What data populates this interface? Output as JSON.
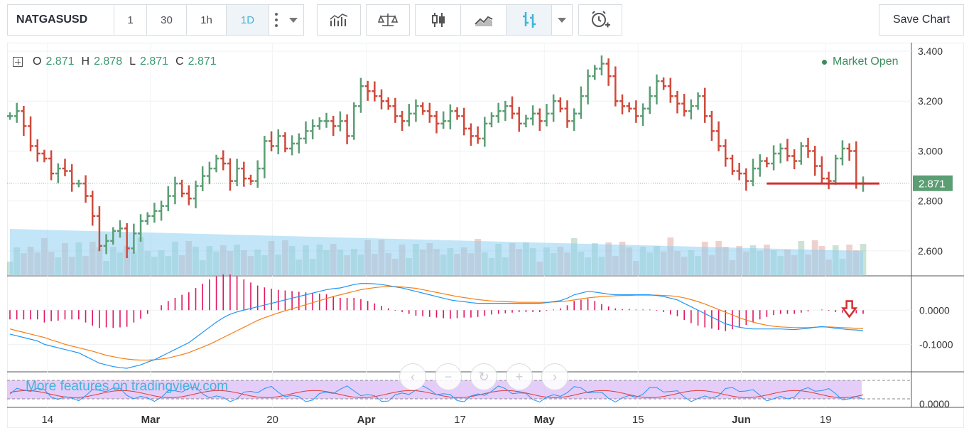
{
  "toolbar": {
    "symbol": "NATGASUSD",
    "intervals": [
      "1",
      "30",
      "1h",
      "1D"
    ],
    "active_interval": "1D",
    "save_label": "Save Chart",
    "icons": [
      "indicators-icon",
      "compare-scale-icon",
      "candles-icon",
      "line-chart-icon",
      "bars-icon",
      "alert-icon"
    ]
  },
  "legend": {
    "o_label": "O",
    "o": "2.871",
    "h_label": "H",
    "h": "2.878",
    "l_label": "L",
    "l": "2.871",
    "c_label": "C",
    "c": "2.871"
  },
  "status": "Market Open",
  "last_price_label": "2.871",
  "promo": "More features on tradingview.com",
  "colors": {
    "up": "#5b9e74",
    "down": "#cf4a3a",
    "macd": "#2196f3",
    "signal": "#f57f17",
    "hist": "#e0155f",
    "support": "#d32f2f",
    "accent": "#41b4d8"
  },
  "chart_data": {
    "type": "bar",
    "price_axis_ticks": [
      "3.400",
      "3.200",
      "3.000",
      "2.800",
      "2.600"
    ],
    "macd_axis_ticks": [
      "0.0000",
      "-0.1000"
    ],
    "rsi_axis_ticks": [
      "0.0000"
    ],
    "x_tick_labels": [
      "14",
      "Mar",
      "20",
      "Apr",
      "17",
      "May",
      "15",
      "Jun",
      "19"
    ],
    "ylim": [
      2.5,
      3.42
    ],
    "support_level": 2.87,
    "close": [
      3.14,
      3.16,
      3.1,
      3.02,
      2.99,
      2.97,
      2.91,
      2.93,
      2.92,
      2.87,
      2.87,
      2.82,
      2.74,
      2.62,
      2.64,
      2.68,
      2.69,
      2.61,
      2.67,
      2.72,
      2.74,
      2.76,
      2.78,
      2.82,
      2.87,
      2.83,
      2.81,
      2.86,
      2.9,
      2.93,
      2.97,
      2.95,
      2.88,
      2.93,
      2.89,
      2.88,
      2.93,
      3.04,
      3.02,
      3.06,
      3.01,
      3.03,
      3.05,
      3.08,
      3.1,
      3.12,
      3.12,
      3.1,
      3.12,
      3.06,
      3.18,
      3.26,
      3.24,
      3.22,
      3.2,
      3.18,
      3.14,
      3.12,
      3.15,
      3.18,
      3.16,
      3.14,
      3.11,
      3.12,
      3.16,
      3.14,
      3.09,
      3.06,
      3.05,
      3.11,
      3.14,
      3.16,
      3.18,
      3.15,
      3.11,
      3.13,
      3.15,
      3.12,
      3.15,
      3.2,
      3.17,
      3.12,
      3.15,
      3.22,
      3.3,
      3.33,
      3.35,
      3.3,
      3.2,
      3.18,
      3.17,
      3.14,
      3.17,
      3.22,
      3.28,
      3.26,
      3.22,
      3.19,
      3.16,
      3.18,
      3.22,
      3.14,
      3.08,
      3.02,
      2.97,
      2.92,
      2.91,
      2.88,
      2.93,
      2.96,
      2.95,
      2.99,
      3.01,
      2.98,
      2.96,
      3.02,
      3.0,
      2.94,
      2.89,
      2.88,
      2.97,
      3.01,
      3.0,
      2.87,
      2.871
    ],
    "macd": [
      -0.07,
      -0.075,
      -0.08,
      -0.085,
      -0.09,
      -0.1,
      -0.105,
      -0.11,
      -0.115,
      -0.12,
      -0.125,
      -0.135,
      -0.145,
      -0.155,
      -0.16,
      -0.165,
      -0.168,
      -0.17,
      -0.165,
      -0.16,
      -0.152,
      -0.145,
      -0.135,
      -0.125,
      -0.115,
      -0.105,
      -0.095,
      -0.08,
      -0.065,
      -0.05,
      -0.035,
      -0.022,
      -0.012,
      -0.005,
      0.0,
      0.005,
      0.01,
      0.015,
      0.02,
      0.025,
      0.03,
      0.035,
      0.04,
      0.045,
      0.05,
      0.055,
      0.06,
      0.063,
      0.065,
      0.07,
      0.075,
      0.078,
      0.078,
      0.077,
      0.075,
      0.072,
      0.068,
      0.065,
      0.06,
      0.055,
      0.05,
      0.045,
      0.04,
      0.035,
      0.03,
      0.027,
      0.025,
      0.022,
      0.02,
      0.02,
      0.02,
      0.02,
      0.02,
      0.02,
      0.02,
      0.02,
      0.02,
      0.02,
      0.022,
      0.025,
      0.028,
      0.035,
      0.045,
      0.05,
      0.055,
      0.053,
      0.05,
      0.047,
      0.045,
      0.045,
      0.045,
      0.045,
      0.045,
      0.045,
      0.043,
      0.04,
      0.035,
      0.03,
      0.02,
      0.01,
      0.0,
      -0.01,
      -0.02,
      -0.03,
      -0.04,
      -0.045,
      -0.05,
      -0.053,
      -0.055,
      -0.055,
      -0.055,
      -0.055,
      -0.055,
      -0.056,
      -0.057,
      -0.055,
      -0.053,
      -0.05,
      -0.048,
      -0.05,
      -0.053,
      -0.055,
      -0.057,
      -0.058,
      -0.06
    ],
    "signal": [
      -0.055,
      -0.06,
      -0.065,
      -0.07,
      -0.075,
      -0.08,
      -0.087,
      -0.093,
      -0.1,
      -0.105,
      -0.11,
      -0.115,
      -0.12,
      -0.126,
      -0.132,
      -0.136,
      -0.14,
      -0.143,
      -0.145,
      -0.146,
      -0.146,
      -0.145,
      -0.143,
      -0.14,
      -0.135,
      -0.13,
      -0.124,
      -0.116,
      -0.108,
      -0.1,
      -0.09,
      -0.08,
      -0.07,
      -0.06,
      -0.05,
      -0.04,
      -0.03,
      -0.022,
      -0.015,
      -0.008,
      -0.002,
      0.004,
      0.01,
      0.016,
      0.022,
      0.028,
      0.034,
      0.04,
      0.045,
      0.05,
      0.055,
      0.06,
      0.063,
      0.066,
      0.068,
      0.069,
      0.069,
      0.068,
      0.066,
      0.064,
      0.06,
      0.056,
      0.052,
      0.048,
      0.044,
      0.04,
      0.037,
      0.034,
      0.031,
      0.029,
      0.027,
      0.026,
      0.025,
      0.024,
      0.023,
      0.023,
      0.023,
      0.023,
      0.023,
      0.024,
      0.025,
      0.027,
      0.03,
      0.033,
      0.036,
      0.038,
      0.04,
      0.041,
      0.042,
      0.043,
      0.043,
      0.044,
      0.044,
      0.044,
      0.044,
      0.043,
      0.042,
      0.04,
      0.036,
      0.031,
      0.025,
      0.018,
      0.01,
      0.002,
      -0.006,
      -0.014,
      -0.022,
      -0.029,
      -0.035,
      -0.04,
      -0.044,
      -0.047,
      -0.049,
      -0.05,
      -0.051,
      -0.051,
      -0.051,
      -0.05,
      -0.049,
      -0.049,
      -0.05,
      -0.051,
      -0.052,
      -0.053,
      -0.054
    ]
  }
}
